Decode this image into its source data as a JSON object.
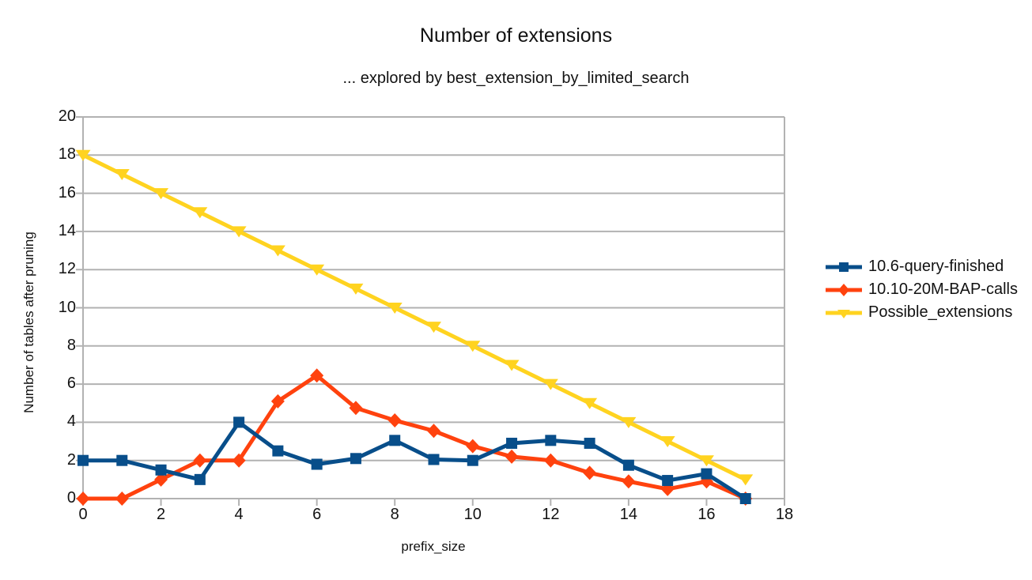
{
  "chart_data": {
    "type": "line",
    "title": "Number of extensions",
    "subtitle": "... explored by best_extension_by_limited_search",
    "xlabel": "prefix_size",
    "ylabel": "Number of tables after pruning",
    "xlim": [
      0,
      18
    ],
    "ylim": [
      0,
      20
    ],
    "xticks": [
      0,
      2,
      4,
      6,
      8,
      10,
      12,
      14,
      16,
      18
    ],
    "yticks": [
      0,
      2,
      4,
      6,
      8,
      10,
      12,
      14,
      16,
      18,
      20
    ],
    "grid": "horizontal",
    "legend_position": "right",
    "x": [
      0,
      1,
      2,
      3,
      4,
      5,
      6,
      7,
      8,
      9,
      10,
      11,
      12,
      13,
      14,
      15,
      16,
      17
    ],
    "series": [
      {
        "name": "10.6-query-finished",
        "color": "#084e8a",
        "marker": "square",
        "values": [
          2,
          2,
          1.5,
          1,
          4,
          2.5,
          1.8,
          2.1,
          3.05,
          2.05,
          2,
          2.9,
          3.05,
          2.9,
          1.75,
          0.95,
          1.3,
          0
        ]
      },
      {
        "name": "10.10-20M-BAP-calls",
        "color": "#ff420e",
        "marker": "diamond",
        "values": [
          0,
          0,
          1,
          2,
          2,
          5.1,
          6.45,
          4.75,
          4.1,
          3.55,
          2.75,
          2.2,
          2,
          1.35,
          0.9,
          0.5,
          0.9,
          0
        ]
      },
      {
        "name": "Possible_extensions",
        "color": "#ffd320",
        "marker": "triangle-down",
        "values": [
          18,
          17,
          16,
          15,
          14,
          13,
          12,
          11,
          10,
          9,
          8,
          7,
          6,
          5,
          4,
          3,
          2,
          1
        ]
      }
    ],
    "colors": {
      "grid": "#b2b2b2",
      "axis": "#b2b2b2",
      "text": "#121212",
      "background": "#ffffff"
    }
  }
}
